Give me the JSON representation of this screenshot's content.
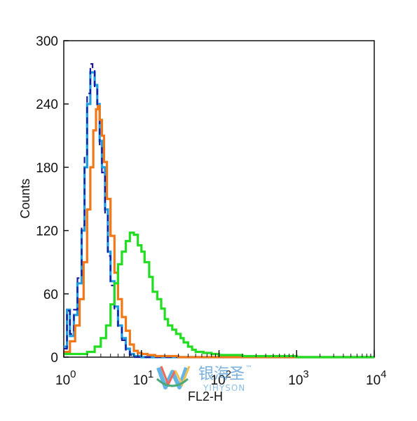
{
  "chart_data": {
    "type": "line",
    "title": "",
    "xlabel": "FL2-H",
    "ylabel": "Counts",
    "x_scale": "log",
    "xlim": [
      1,
      10000
    ],
    "ylim": [
      0,
      300
    ],
    "x_ticks": [
      {
        "value": 1,
        "base": "10",
        "exp": "0"
      },
      {
        "value": 10,
        "base": "10",
        "exp": "1"
      },
      {
        "value": 100,
        "base": "10",
        "exp": "2"
      },
      {
        "value": 1000,
        "base": "10",
        "exp": "3"
      },
      {
        "value": 10000,
        "base": "10",
        "exp": "4"
      }
    ],
    "y_ticks": [
      "0",
      "60",
      "120",
      "180",
      "240",
      "300"
    ],
    "series": [
      {
        "color": "#1f9de0",
        "style": "solid",
        "points": [
          [
            1.0,
            10
          ],
          [
            1.1,
            45
          ],
          [
            1.2,
            20
          ],
          [
            1.35,
            40
          ],
          [
            1.5,
            70
          ],
          [
            1.7,
            120
          ],
          [
            1.85,
            180
          ],
          [
            2.0,
            240
          ],
          [
            2.2,
            270
          ],
          [
            2.35,
            270
          ],
          [
            2.5,
            258
          ],
          [
            2.7,
            240
          ],
          [
            2.9,
            205
          ],
          [
            3.1,
            180
          ],
          [
            3.4,
            140
          ],
          [
            3.7,
            100
          ],
          [
            4.0,
            72
          ],
          [
            4.5,
            48
          ],
          [
            5.0,
            30
          ],
          [
            5.6,
            18
          ],
          [
            6.3,
            8
          ],
          [
            7.1,
            3
          ],
          [
            8,
            1
          ],
          [
            10,
            0
          ],
          [
            10000,
            0
          ]
        ]
      },
      {
        "color": "#1a1aa0",
        "style": "dashed",
        "points": [
          [
            1.0,
            8
          ],
          [
            1.1,
            44
          ],
          [
            1.2,
            22
          ],
          [
            1.35,
            45
          ],
          [
            1.5,
            75
          ],
          [
            1.7,
            125
          ],
          [
            1.85,
            190
          ],
          [
            2.0,
            250
          ],
          [
            2.2,
            278
          ],
          [
            2.35,
            272
          ],
          [
            2.5,
            255
          ],
          [
            2.7,
            236
          ],
          [
            2.9,
            200
          ],
          [
            3.1,
            175
          ],
          [
            3.4,
            135
          ],
          [
            3.7,
            96
          ],
          [
            4.0,
            68
          ],
          [
            4.5,
            45
          ],
          [
            5.0,
            28
          ],
          [
            5.6,
            16
          ],
          [
            6.3,
            7
          ],
          [
            7.1,
            2
          ],
          [
            8,
            0
          ],
          [
            10000,
            0
          ]
        ]
      },
      {
        "color": "#f07818",
        "style": "solid",
        "points": [
          [
            1.0,
            5
          ],
          [
            1.2,
            15
          ],
          [
            1.4,
            30
          ],
          [
            1.6,
            55
          ],
          [
            1.8,
            90
          ],
          [
            2.0,
            140
          ],
          [
            2.2,
            180
          ],
          [
            2.4,
            215
          ],
          [
            2.6,
            235
          ],
          [
            2.75,
            238
          ],
          [
            2.9,
            225
          ],
          [
            3.1,
            210
          ],
          [
            3.3,
            185
          ],
          [
            3.6,
            150
          ],
          [
            4.0,
            115
          ],
          [
            4.5,
            80
          ],
          [
            5.0,
            55
          ],
          [
            5.6,
            38
          ],
          [
            6.3,
            25
          ],
          [
            7.1,
            12
          ],
          [
            8,
            6
          ],
          [
            9,
            4
          ],
          [
            10,
            3
          ],
          [
            12,
            2
          ],
          [
            15,
            1
          ],
          [
            20,
            1
          ],
          [
            30,
            0
          ],
          [
            10000,
            0
          ]
        ]
      },
      {
        "color": "#22dd22",
        "style": "solid",
        "points": [
          [
            1.0,
            3
          ],
          [
            1.5,
            3
          ],
          [
            2.0,
            5
          ],
          [
            2.5,
            10
          ],
          [
            3.0,
            18
          ],
          [
            3.5,
            30
          ],
          [
            4.0,
            50
          ],
          [
            4.5,
            70
          ],
          [
            5.0,
            88
          ],
          [
            5.6,
            100
          ],
          [
            6.3,
            110
          ],
          [
            7.1,
            118
          ],
          [
            8.0,
            116
          ],
          [
            9.0,
            106
          ],
          [
            10,
            100
          ],
          [
            11,
            90
          ],
          [
            12.6,
            76
          ],
          [
            14,
            62
          ],
          [
            16,
            55
          ],
          [
            18,
            46
          ],
          [
            20,
            36
          ],
          [
            22,
            30
          ],
          [
            25,
            26
          ],
          [
            28,
            22
          ],
          [
            32,
            18
          ],
          [
            35,
            14
          ],
          [
            40,
            10
          ],
          [
            45,
            7
          ],
          [
            50,
            5
          ],
          [
            63,
            4
          ],
          [
            80,
            3
          ],
          [
            100,
            2
          ],
          [
            150,
            2
          ],
          [
            200,
            1
          ],
          [
            400,
            1
          ],
          [
            1000,
            0
          ],
          [
            10000,
            0
          ]
        ]
      }
    ],
    "grid": false
  },
  "watermark": {
    "cn_text": "银海圣",
    "tm": "™",
    "en_text": "YIHYSON"
  }
}
